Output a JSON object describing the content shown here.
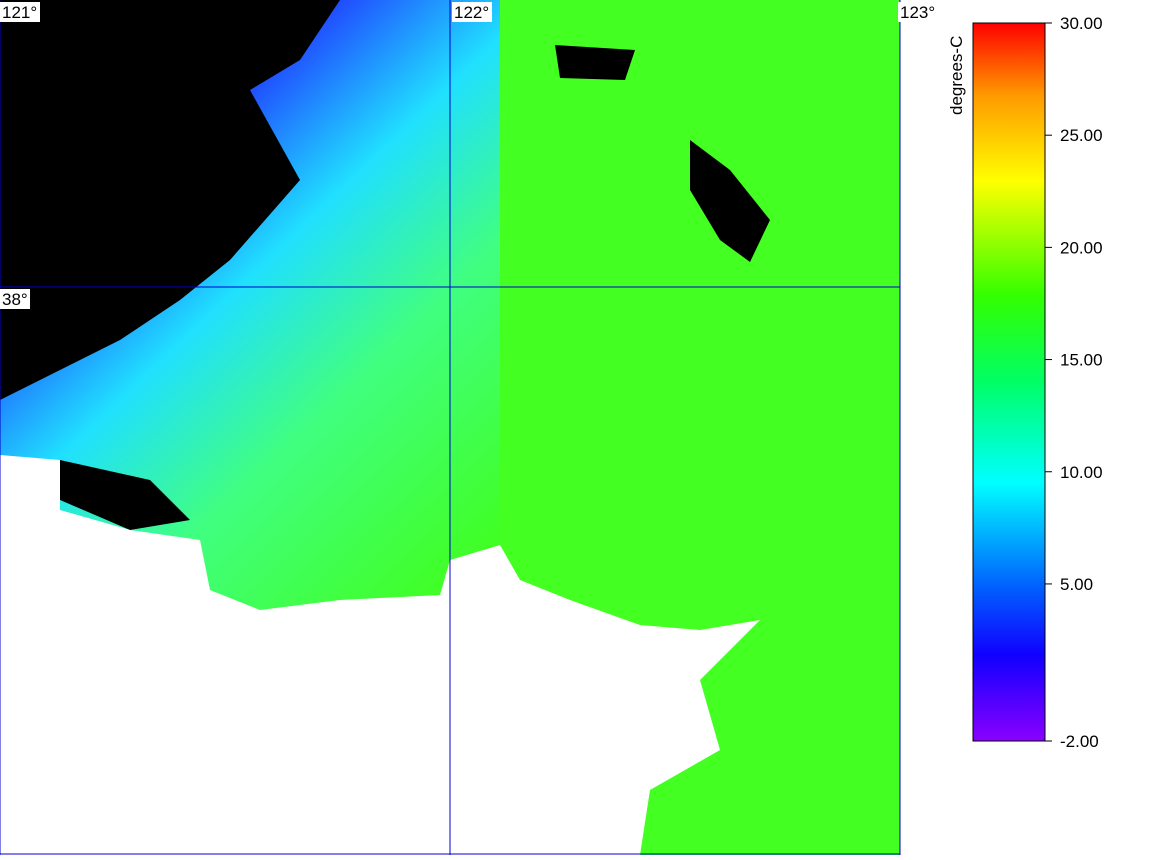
{
  "map": {
    "lon_labels": [
      "121°",
      "122°",
      "123°"
    ],
    "lat_labels": [
      "38°"
    ],
    "colorbar": {
      "title": "degrees-C",
      "lim": [
        -2,
        30
      ],
      "ticks": [
        {
          "value": 30,
          "label": "30.00"
        },
        {
          "value": 25,
          "label": "25.00"
        },
        {
          "value": 20,
          "label": "20.00"
        },
        {
          "value": 15,
          "label": "15.00"
        },
        {
          "value": 10,
          "label": "10.00"
        },
        {
          "value": 5,
          "label": "5.00"
        },
        {
          "value": -2,
          "label": "-2.00"
        }
      ]
    }
  }
}
